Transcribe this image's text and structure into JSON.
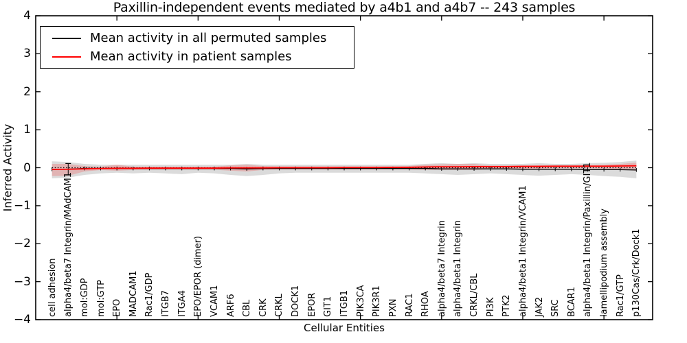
{
  "figure": {
    "title": "Paxillin-independent events mediated by a4b1 and a4b7 -- 243 samples",
    "xlabel": "Cellular Entities",
    "ylabel": "Inferred Activity"
  },
  "legend": {
    "items": [
      {
        "label": "Mean activity in all permuted samples",
        "color": "#000000"
      },
      {
        "label": "Mean activity in patient samples",
        "color": "#ff0000"
      }
    ]
  },
  "chart_data": {
    "type": "line",
    "title": "Paxillin-independent events mediated by a4b1 and a4b7 -- 243 samples",
    "xlabel": "Cellular Entities",
    "ylabel": "Inferred Activity",
    "xlim": [
      0,
      38
    ],
    "ylim": [
      -4,
      4
    ],
    "yticks": [
      -4,
      -3,
      -2,
      -1,
      0,
      1,
      2,
      3,
      4
    ],
    "xticks_major": [
      5,
      10,
      15,
      20,
      25,
      30,
      35
    ],
    "grid": false,
    "legend_position": "upper left",
    "zero_line": {
      "style": "dotted",
      "color": "#000000",
      "y": 0
    },
    "categories": [
      "cell adhesion",
      "alpha4/beta7 Integrin/MAdCAM1",
      "mol:GDP",
      "mol:GTP",
      "EPO",
      "MADCAM1",
      "Rac1/GDP",
      "ITGB7",
      "ITGA4",
      "EPO/EPOR (dimer)",
      "VCAM1",
      "ARF6",
      "CBL",
      "CRK",
      "CRKL",
      "DOCK1",
      "EPOR",
      "GIT1",
      "ITGB1",
      "PIK3CA",
      "PIK3R1",
      "PXN",
      "RAC1",
      "RHOA",
      "alpha4/beta7 Integrin",
      "alpha4/beta1 Integrin",
      "CRKL/CBL",
      "PI3K",
      "PTK2",
      "alpha4/beta1 Integrin/VCAM1",
      "JAK2",
      "SRC",
      "BCAR1",
      "alpha4/beta1 Integrin/Paxillin/GIT1",
      "lamellipodium assembly",
      "Rac1/GTP",
      "p130Cas/Crk/Dock1"
    ],
    "x": [
      1,
      2,
      3,
      4,
      5,
      6,
      7,
      8,
      9,
      10,
      11,
      12,
      13,
      14,
      15,
      16,
      17,
      18,
      19,
      20,
      21,
      22,
      23,
      24,
      25,
      26,
      27,
      28,
      29,
      30,
      31,
      32,
      33,
      34,
      35,
      36,
      37
    ],
    "series": [
      {
        "name": "Mean activity in all permuted samples",
        "color": "#000000",
        "values": [
          -0.04,
          -0.04,
          -0.02,
          -0.02,
          -0.02,
          -0.02,
          -0.02,
          -0.02,
          -0.02,
          -0.02,
          -0.02,
          -0.02,
          -0.03,
          -0.02,
          -0.02,
          -0.02,
          -0.02,
          -0.02,
          -0.02,
          -0.02,
          -0.02,
          -0.02,
          -0.02,
          -0.02,
          -0.03,
          -0.03,
          -0.03,
          -0.03,
          -0.03,
          -0.04,
          -0.04,
          -0.04,
          -0.04,
          -0.05,
          -0.05,
          -0.05,
          -0.06
        ],
        "band_upper": [
          0.17,
          0.15,
          0.1,
          0.08,
          0.08,
          0.08,
          0.08,
          0.08,
          0.08,
          0.08,
          0.08,
          0.08,
          0.1,
          0.08,
          0.08,
          0.08,
          0.08,
          0.08,
          0.08,
          0.08,
          0.08,
          0.08,
          0.08,
          0.1,
          0.12,
          0.1,
          0.12,
          0.1,
          0.1,
          0.1,
          0.12,
          0.1,
          0.1,
          0.12,
          0.13,
          0.15,
          0.19
        ],
        "band_lower": [
          -0.28,
          -0.26,
          -0.19,
          -0.15,
          -0.13,
          -0.15,
          -0.13,
          -0.15,
          -0.17,
          -0.13,
          -0.15,
          -0.19,
          -0.22,
          -0.19,
          -0.15,
          -0.13,
          -0.13,
          -0.13,
          -0.13,
          -0.13,
          -0.13,
          -0.13,
          -0.13,
          -0.15,
          -0.17,
          -0.19,
          -0.17,
          -0.15,
          -0.17,
          -0.19,
          -0.21,
          -0.19,
          -0.17,
          -0.19,
          -0.22,
          -0.24,
          -0.28
        ],
        "band_color": "#999999",
        "band_opacity": 0.35,
        "error_bars": [
          0.05,
          0.15,
          0.05,
          0.05,
          0.05,
          0.05,
          0.05,
          0.05,
          0.05,
          0.05,
          0.05,
          0.05,
          0.05,
          0.05,
          0.05,
          0.05,
          0.05,
          0.05,
          0.05,
          0.05,
          0.05,
          0.05,
          0.05,
          0.05,
          0.05,
          0.05,
          0.05,
          0.05,
          0.05,
          0.05,
          0.05,
          0.05,
          0.05,
          0.05,
          0.05,
          0.05,
          0.05
        ]
      },
      {
        "name": "Mean activity in patient samples",
        "color": "#ff0000",
        "values": [
          -0.045,
          -0.04,
          -0.03,
          -0.02,
          -0.015,
          -0.015,
          -0.01,
          -0.01,
          -0.01,
          -0.01,
          -0.01,
          -0.005,
          -0.005,
          -0.005,
          0,
          0,
          0,
          0,
          0.005,
          0.005,
          0.005,
          0.01,
          0.01,
          0.02,
          0.025,
          0.025,
          0.03,
          0.03,
          0.03,
          0.035,
          0.035,
          0.04,
          0.04,
          0.04,
          0.04,
          0.045,
          0.05
        ],
        "band_upper": [
          0.1,
          0.1,
          0.045,
          0.027,
          0.08,
          0.027,
          0.027,
          0.027,
          0.027,
          0.027,
          0.027,
          0.06,
          0.08,
          0.045,
          0.036,
          0.036,
          0.036,
          0.036,
          0.036,
          0.036,
          0.036,
          0.036,
          0.045,
          0.08,
          0.09,
          0.1,
          0.1,
          0.06,
          0.06,
          0.06,
          0.07,
          0.06,
          0.06,
          0.07,
          0.08,
          0.1,
          0.135
        ],
        "band_lower": [
          -0.22,
          -0.21,
          -0.1,
          -0.06,
          -0.08,
          -0.06,
          -0.054,
          -0.054,
          -0.054,
          -0.054,
          -0.054,
          -0.08,
          -0.1,
          -0.06,
          -0.045,
          -0.045,
          -0.045,
          -0.045,
          -0.045,
          -0.045,
          -0.045,
          -0.045,
          -0.045,
          -0.06,
          -0.06,
          -0.06,
          -0.06,
          -0.036,
          -0.027,
          -0.027,
          -0.027,
          -0.018,
          -0.018,
          -0.018,
          -0.027,
          -0.045,
          -0.08
        ],
        "band_color": "#ff0000",
        "band_opacity": 0.18
      }
    ]
  }
}
